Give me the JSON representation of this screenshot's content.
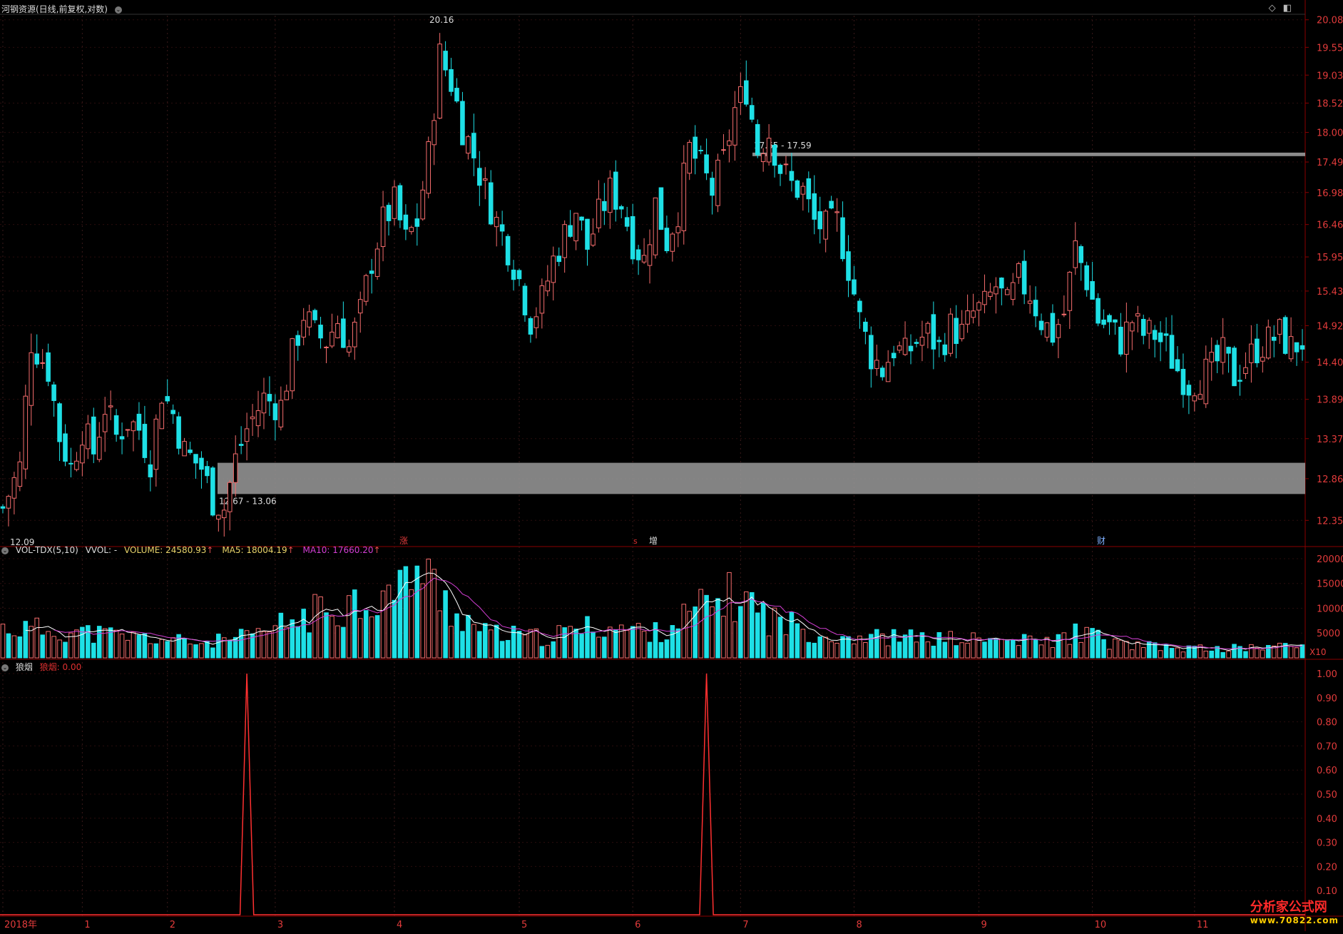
{
  "main_header": {
    "title": "河钢资源(日线,前复权,对数)"
  },
  "vol_header": {
    "name": "VOL-TDX(5,10)",
    "vvol": "VVOL: -",
    "volume": "VOLUME: 24580.93",
    "ma5": "MA5: 18004.19",
    "ma10": "MA10: 17660.20"
  },
  "ind_header": {
    "name": "狼烟",
    "value": "狼烟: 0.00"
  },
  "markers": {
    "zhang": "涨",
    "zeng": "增",
    "cai": "财",
    "s": "s"
  },
  "corner_icons": [
    "diamond-icon",
    "window-icon"
  ],
  "colors": {
    "up": "#f56c6c",
    "down": "#1ee0e6",
    "axis": "#8a0000",
    "axis_text": "#e23b3b",
    "ma5": "#ffffff",
    "ma10": "#d43fd4",
    "signal": "#ff3030",
    "zone": "#9a9a9a"
  },
  "watermark": {
    "cn": "分析家公式网",
    "url": "www.70822.com"
  },
  "chart_data": [
    {
      "type": "candlestick",
      "scale": "log",
      "ylim": [
        12.09,
        20.16
      ],
      "y_ticks": [
        "20.08",
        "19.55",
        "19.03",
        "18.52",
        "18.00",
        "17.49",
        "16.98",
        "16.46",
        "15.95",
        "15.43",
        "14.92",
        "14.40",
        "13.89",
        "13.37",
        "12.86",
        "12.35"
      ],
      "x_ticks": [
        "2018年",
        "1",
        "2",
        "3",
        "4",
        "5",
        "6",
        "7",
        "8",
        "9",
        "10",
        "11"
      ],
      "annotations": [
        {
          "text": "20.16",
          "value": 20.16
        },
        {
          "text": "12.09",
          "value": 12.09
        }
      ],
      "zones": [
        {
          "label": "17.65 - 17.59",
          "low": 17.59,
          "high": 17.65
        },
        {
          "label": "12.67 - 13.06",
          "low": 12.67,
          "high": 13.06
        }
      ],
      "close_path": [
        [
          0,
          12.5
        ],
        [
          3,
          13.0
        ],
        [
          5,
          14.7
        ],
        [
          8,
          14.3
        ],
        [
          10,
          13.4
        ],
        [
          12,
          13.0
        ],
        [
          14,
          13.5
        ],
        [
          16,
          13.2
        ],
        [
          18,
          13.8
        ],
        [
          20,
          13.4
        ],
        [
          22,
          13.6
        ],
        [
          24,
          13.5
        ],
        [
          26,
          13.1
        ],
        [
          28,
          14.0
        ],
        [
          30,
          13.7
        ],
        [
          32,
          13.2
        ],
        [
          35,
          13.0
        ],
        [
          37,
          12.6
        ],
        [
          39,
          12.5
        ],
        [
          41,
          13.1
        ],
        [
          43,
          13.5
        ],
        [
          46,
          13.9
        ],
        [
          49,
          13.8
        ],
        [
          51,
          14.5
        ],
        [
          53,
          15.1
        ],
        [
          55,
          14.8
        ],
        [
          57,
          14.7
        ],
        [
          59,
          15.0
        ],
        [
          61,
          14.6
        ],
        [
          63,
          15.1
        ],
        [
          65,
          15.9
        ],
        [
          67,
          16.5
        ],
        [
          69,
          16.8
        ],
        [
          71,
          16.2
        ],
        [
          73,
          16.5
        ],
        [
          75,
          17.6
        ],
        [
          77,
          19.4
        ],
        [
          79,
          18.9
        ],
        [
          81,
          18.1
        ],
        [
          83,
          17.6
        ],
        [
          85,
          17.0
        ],
        [
          87,
          16.5
        ],
        [
          89,
          16.1
        ],
        [
          91,
          15.6
        ],
        [
          93,
          15.0
        ],
        [
          95,
          15.3
        ],
        [
          97,
          15.9
        ],
        [
          99,
          16.3
        ],
        [
          101,
          16.7
        ],
        [
          103,
          16.1
        ],
        [
          105,
          16.6
        ],
        [
          107,
          17.0
        ],
        [
          109,
          16.8
        ],
        [
          111,
          16.2
        ],
        [
          113,
          15.9
        ],
        [
          115,
          16.8
        ],
        [
          117,
          16.2
        ],
        [
          119,
          16.7
        ],
        [
          121,
          17.7
        ],
        [
          123,
          17.4
        ],
        [
          125,
          17.0
        ],
        [
          127,
          17.5
        ],
        [
          129,
          18.4
        ],
        [
          131,
          18.8
        ],
        [
          133,
          17.7
        ],
        [
          135,
          18.0
        ],
        [
          137,
          17.4
        ],
        [
          139,
          17.1
        ],
        [
          141,
          17.0
        ],
        [
          143,
          16.5
        ],
        [
          145,
          16.4
        ],
        [
          147,
          16.5
        ],
        [
          149,
          15.8
        ],
        [
          151,
          15.0
        ],
        [
          153,
          14.5
        ],
        [
          155,
          14.3
        ],
        [
          157,
          14.6
        ],
        [
          159,
          14.5
        ],
        [
          161,
          14.7
        ],
        [
          163,
          14.8
        ],
        [
          165,
          14.6
        ],
        [
          167,
          14.9
        ],
        [
          169,
          14.8
        ],
        [
          171,
          15.1
        ],
        [
          173,
          15.2
        ],
        [
          175,
          15.5
        ],
        [
          177,
          15.2
        ],
        [
          179,
          15.6
        ],
        [
          181,
          15.4
        ],
        [
          183,
          15.0
        ],
        [
          185,
          14.8
        ],
        [
          187,
          15.1
        ],
        [
          189,
          16.1
        ],
        [
          191,
          15.6
        ],
        [
          193,
          15.0
        ],
        [
          195,
          14.9
        ],
        [
          197,
          14.7
        ],
        [
          199,
          15.0
        ],
        [
          201,
          14.8
        ],
        [
          203,
          14.8
        ],
        [
          205,
          14.6
        ],
        [
          207,
          14.3
        ],
        [
          209,
          14.1
        ],
        [
          211,
          14.2
        ],
        [
          213,
          14.3
        ],
        [
          215,
          14.5
        ],
        [
          217,
          14.2
        ],
        [
          219,
          14.4
        ],
        [
          221,
          14.6
        ],
        [
          223,
          14.7
        ],
        [
          225,
          14.8
        ],
        [
          227,
          14.6
        ],
        [
          229,
          14.7
        ]
      ],
      "n_bars": 230
    },
    {
      "type": "bar",
      "name": "VOL-TDX(5,10)",
      "ylim": [
        0,
        21000
      ],
      "y_ticks": [
        20000,
        15000,
        10000,
        5000
      ],
      "unit": "X10",
      "volume_path": [
        [
          0,
          6000
        ],
        [
          10,
          5500
        ],
        [
          20,
          4500
        ],
        [
          35,
          3000
        ],
        [
          39,
          3500
        ],
        [
          45,
          4500
        ],
        [
          50,
          7000
        ],
        [
          60,
          11000
        ],
        [
          70,
          13000
        ],
        [
          72,
          19500
        ],
        [
          76,
          14000
        ],
        [
          80,
          9000
        ],
        [
          85,
          5000
        ],
        [
          95,
          4000
        ],
        [
          105,
          6500
        ],
        [
          115,
          5000
        ],
        [
          125,
          11000
        ],
        [
          130,
          12500
        ],
        [
          135,
          8000
        ],
        [
          145,
          4500
        ],
        [
          160,
          4000
        ],
        [
          175,
          3500
        ],
        [
          185,
          3200
        ],
        [
          190,
          5500
        ],
        [
          195,
          3000
        ],
        [
          205,
          2000
        ],
        [
          215,
          1800
        ],
        [
          222,
          2200
        ],
        [
          229,
          2400
        ]
      ]
    },
    {
      "type": "line",
      "name": "狼烟",
      "ylim": [
        0,
        1.0
      ],
      "y_ticks": [
        "1.00",
        "0.90",
        "0.80",
        "0.70",
        "0.60",
        "0.50",
        "0.40",
        "0.30",
        "0.20",
        "0.10"
      ],
      "spikes": [
        {
          "bar": 43,
          "value": 1.0
        },
        {
          "bar": 124,
          "value": 1.0
        }
      ]
    }
  ]
}
